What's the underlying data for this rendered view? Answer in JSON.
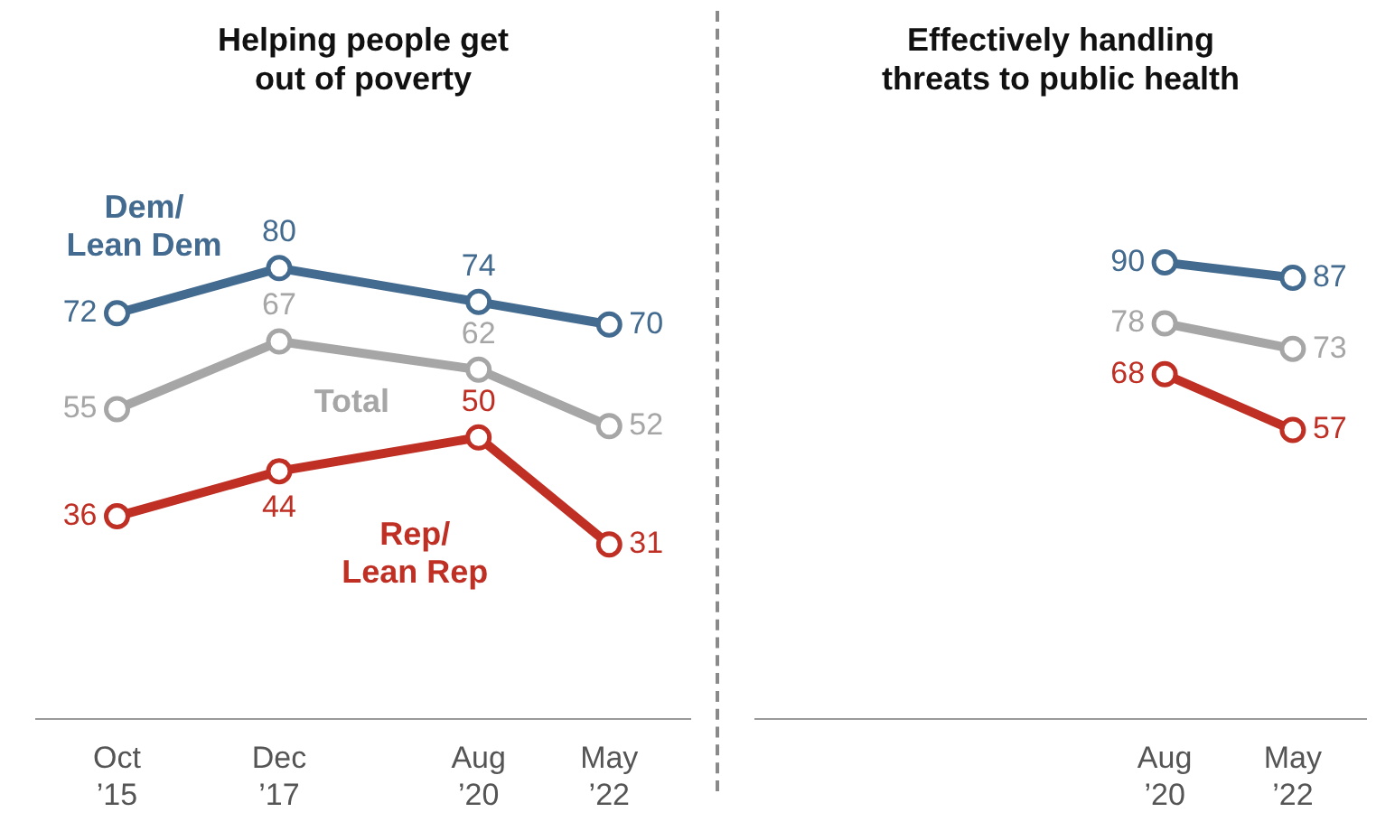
{
  "chart_data": [
    {
      "type": "line",
      "title": "Helping people get\nout of poverty",
      "x": [
        "2015-10",
        "2017-12",
        "2020-08",
        "2022-05"
      ],
      "xlim": [
        "2014-09",
        "2023-06"
      ],
      "xticks": [
        {
          "value": "2015-10",
          "label": "Oct ’15"
        },
        {
          "value": "2017-12",
          "label": "Dec ’17"
        },
        {
          "value": "2020-08",
          "label": "Aug ’20"
        },
        {
          "value": "2022-05",
          "label": "May ’22"
        }
      ],
      "tick_labels": "x",
      "marker": "circle",
      "data_labels": true,
      "series": [
        {
          "name": "Dem/\nLean Dem",
          "color": "#436a8f",
          "values": [
            72,
            80,
            74,
            70
          ]
        },
        {
          "name": "Total",
          "color": "#a6a6a6",
          "values": [
            55,
            67,
            62,
            52
          ]
        },
        {
          "name": "Rep/\nLean Rep",
          "color": "#bf2f24",
          "values": [
            36,
            44,
            50,
            31
          ]
        }
      ]
    },
    {
      "type": "line",
      "title": "Effectively handling\nthreats to public health",
      "x": [
        "2020-08",
        "2022-05"
      ],
      "xlim": [
        "2015-01",
        "2023-05"
      ],
      "xticks": [
        {
          "value": "2020-08",
          "label": "Aug ’20"
        },
        {
          "value": "2022-05",
          "label": "May ’22"
        }
      ],
      "tick_labels": "x",
      "marker": "circle",
      "data_labels": true,
      "series": [
        {
          "color": "#436a8f",
          "values": [
            90,
            87
          ]
        },
        {
          "color": "#a6a6a6",
          "values": [
            78,
            73
          ]
        },
        {
          "color": "#bf2f24",
          "values": [
            68,
            57
          ]
        }
      ]
    }
  ]
}
